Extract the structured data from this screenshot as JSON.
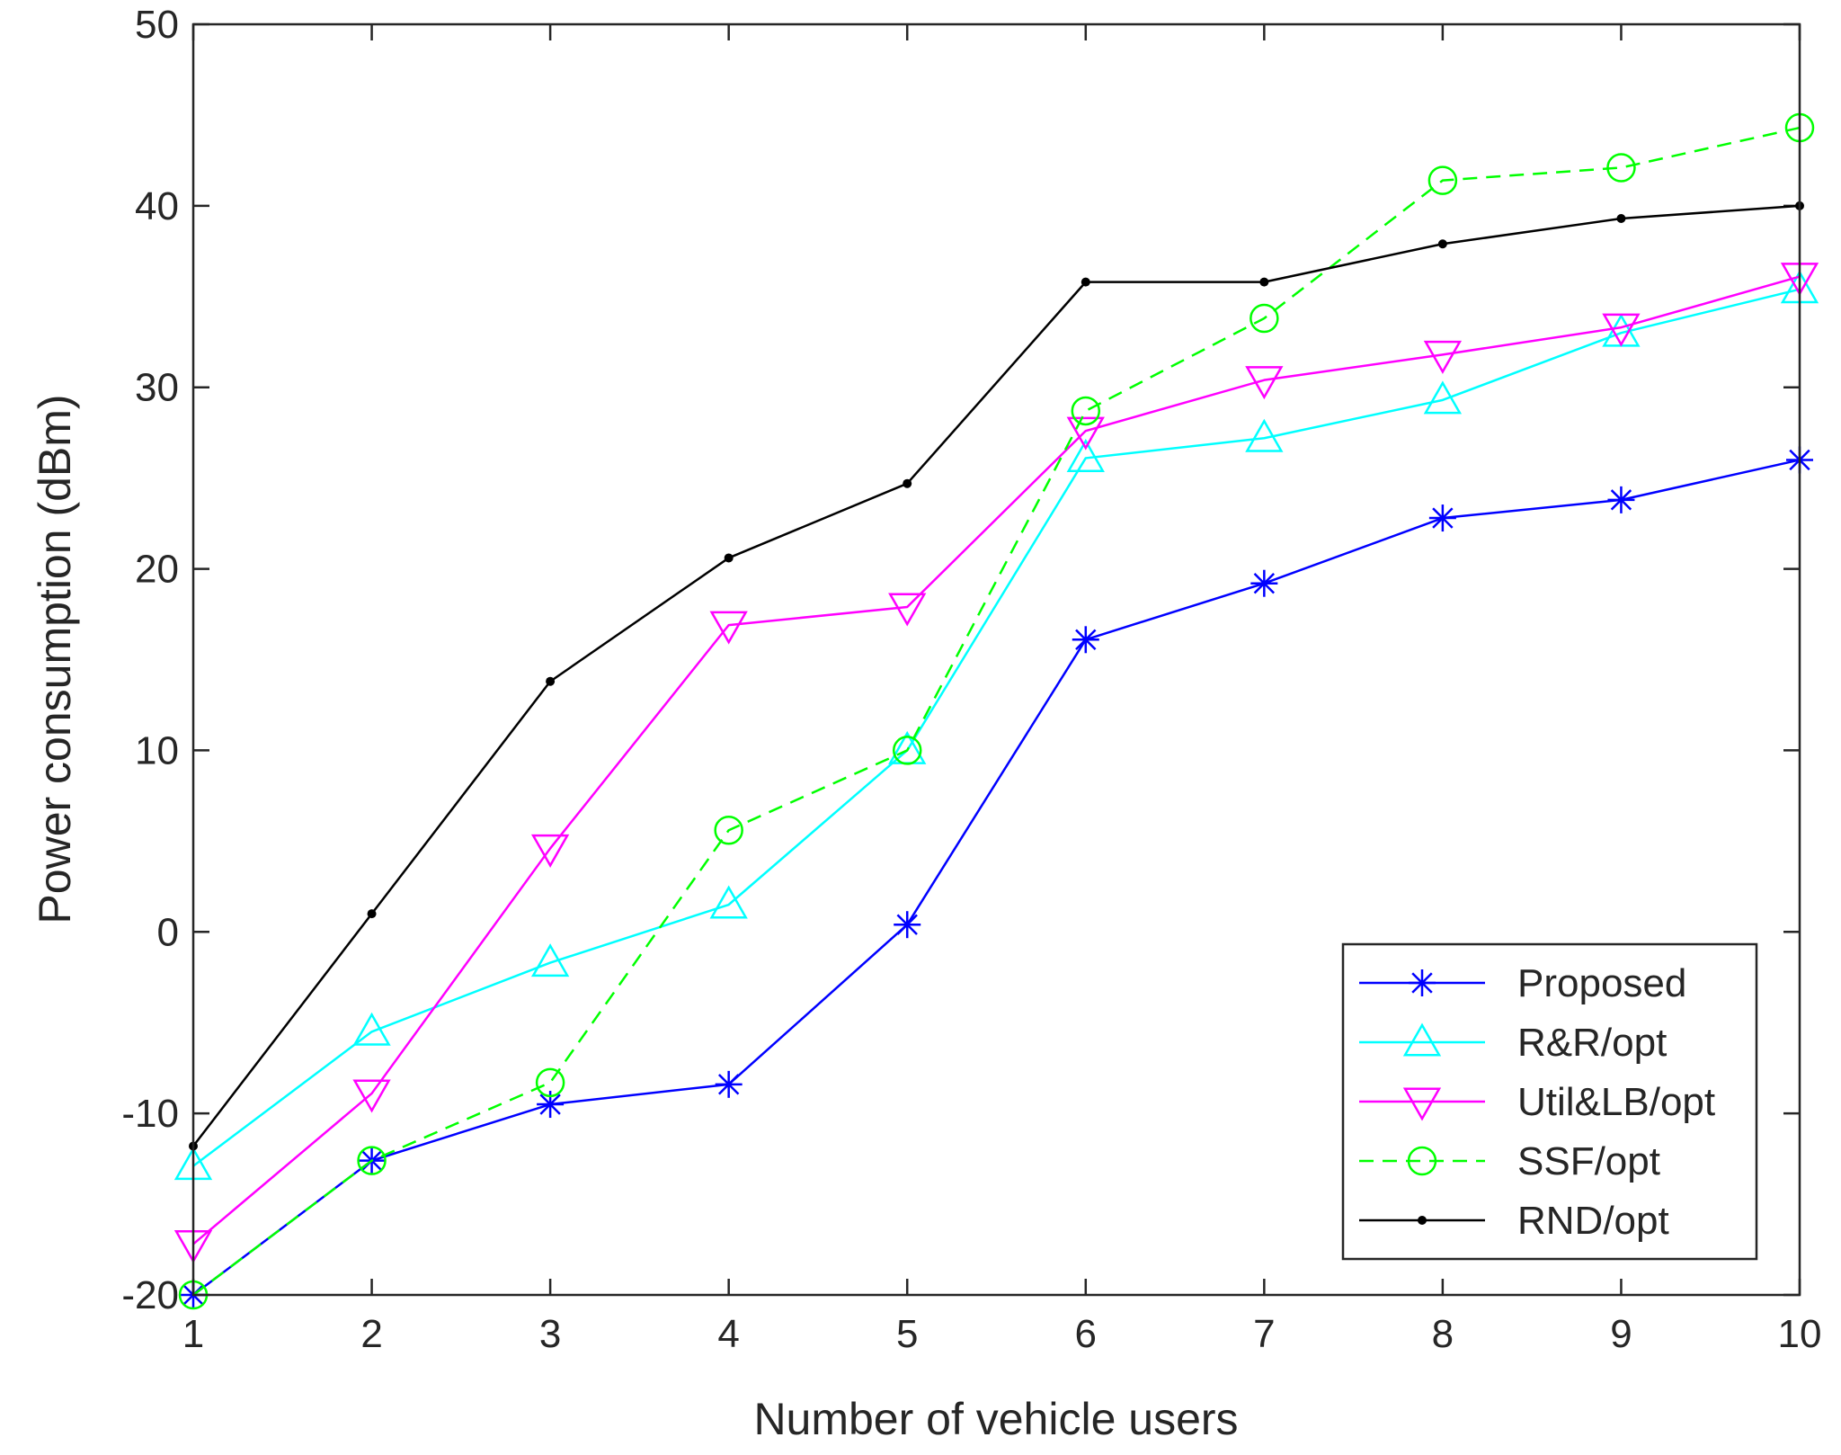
{
  "chart_data": {
    "type": "line",
    "title": "",
    "xlabel": "Number of vehicle users",
    "ylabel": "Power consumption (dBm)",
    "xlim": [
      1,
      10
    ],
    "ylim": [
      -20,
      50
    ],
    "xticks": [
      1,
      2,
      3,
      4,
      5,
      6,
      7,
      8,
      9,
      10
    ],
    "yticks": [
      -20,
      -10,
      0,
      10,
      20,
      30,
      40,
      50
    ],
    "x": [
      1,
      2,
      3,
      4,
      5,
      6,
      7,
      8,
      9,
      10
    ],
    "grid": false,
    "legend_location": "bottom-right",
    "series": [
      {
        "name": "Proposed",
        "color": "#0000ff",
        "marker": "asterisk",
        "dashed": false,
        "values": [
          -20.0,
          -12.6,
          -9.5,
          -8.4,
          0.4,
          16.1,
          19.2,
          22.8,
          23.8,
          26.0
        ]
      },
      {
        "name": "R&R/opt",
        "color": "#00ffff",
        "marker": "triangle-up",
        "dashed": false,
        "values": [
          -12.9,
          -5.5,
          -1.7,
          1.5,
          10.0,
          26.1,
          27.2,
          29.3,
          33.0,
          35.4
        ]
      },
      {
        "name": "Util&LB/opt",
        "color": "#ff00ff",
        "marker": "triangle-down",
        "dashed": false,
        "values": [
          -17.2,
          -8.9,
          4.6,
          16.9,
          17.9,
          27.6,
          30.4,
          31.8,
          33.3,
          36.1
        ]
      },
      {
        "name": "SSF/opt",
        "color": "#00ff00",
        "marker": "circle",
        "dashed": true,
        "values": [
          -20.0,
          -12.6,
          -8.3,
          5.6,
          10.0,
          28.7,
          33.8,
          41.4,
          42.1,
          44.3
        ]
      },
      {
        "name": "RND/opt",
        "color": "#000000",
        "marker": "dot",
        "dashed": false,
        "values": [
          -11.8,
          1.0,
          13.8,
          20.6,
          24.7,
          35.8,
          35.8,
          37.9,
          39.3,
          40.0
        ]
      }
    ]
  }
}
